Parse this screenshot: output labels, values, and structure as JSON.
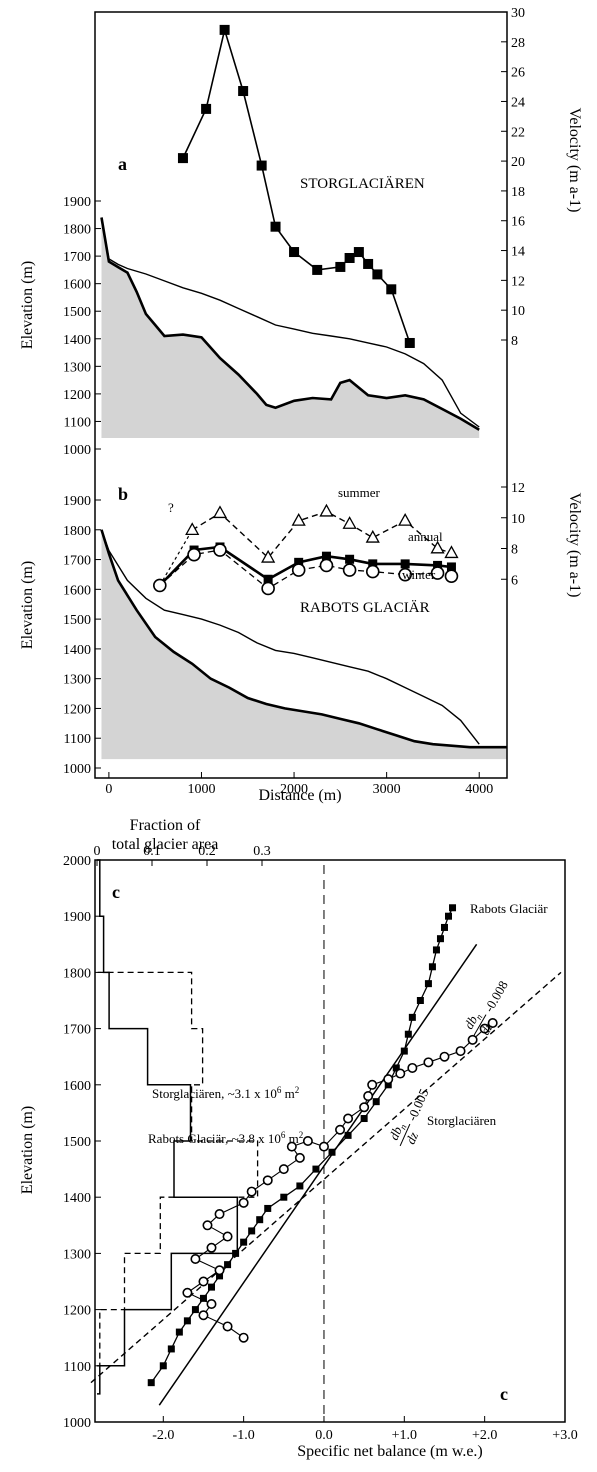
{
  "chart_data": [
    {
      "panel": "a",
      "type": "line",
      "panel_label": "a",
      "glacier_name": "STORGLACIÄREN",
      "ylabel": "Elevation (m)",
      "y2label": "Velocity (m a-1)",
      "elevation_ticks": [
        "1000",
        "1100",
        "1200",
        "1300",
        "1400",
        "1500",
        "1600",
        "1700",
        "1800",
        "1900"
      ],
      "velocity_ticks": [
        "8",
        "10",
        "12",
        "14",
        "16",
        "18",
        "20",
        "22",
        "24",
        "26",
        "28",
        "30"
      ],
      "elevation_range": [
        1000,
        1900
      ],
      "velocity_range": [
        8,
        30
      ],
      "distance_range": [
        -150,
        4300
      ],
      "surface": {
        "x": [
          -80,
          0,
          100,
          200,
          400,
          600,
          800,
          1000,
          1200,
          1400,
          1600,
          1800,
          2000,
          2200,
          2400,
          2600,
          2800,
          3000,
          3200,
          3400,
          3600,
          3800,
          4000
        ],
        "y": [
          1840,
          1690,
          1670,
          1655,
          1635,
          1610,
          1585,
          1565,
          1540,
          1510,
          1480,
          1450,
          1435,
          1420,
          1410,
          1400,
          1385,
          1370,
          1345,
          1310,
          1250,
          1130,
          1080
        ]
      },
      "bed": {
        "x": [
          -80,
          0,
          100,
          200,
          300,
          400,
          500,
          600,
          800,
          1000,
          1200,
          1400,
          1600,
          1700,
          1800,
          2000,
          2200,
          2400,
          2500,
          2600,
          2800,
          3000,
          3200,
          3400,
          3600,
          3800,
          4000
        ],
        "y": [
          1840,
          1680,
          1660,
          1640,
          1570,
          1490,
          1450,
          1410,
          1415,
          1405,
          1330,
          1270,
          1200,
          1160,
          1150,
          1175,
          1185,
          1180,
          1240,
          1250,
          1195,
          1185,
          1195,
          1180,
          1145,
          1110,
          1070
        ]
      },
      "velocity": {
        "x": [
          800,
          1050,
          1250,
          1450,
          1650,
          1800,
          2000,
          2250,
          2500,
          2600,
          2700,
          2800,
          2900,
          3050,
          3250
        ],
        "y": [
          20.2,
          23.5,
          28.8,
          24.7,
          19.7,
          15.6,
          13.9,
          12.7,
          12.9,
          13.5,
          13.9,
          13.1,
          12.4,
          11.4,
          7.8
        ]
      }
    },
    {
      "panel": "b",
      "type": "line",
      "panel_label": "b",
      "glacier_name": "RABOTS GLACIÄR",
      "ylabel": "Elevation (m)",
      "y2label": "Velocity (m a-1)",
      "xlabel": "Distance (m)",
      "elevation_ticks": [
        "1000",
        "1100",
        "1200",
        "1300",
        "1400",
        "1500",
        "1600",
        "1700",
        "1800",
        "1900"
      ],
      "velocity_ticks": [
        "6",
        "8",
        "10",
        "12"
      ],
      "distance_ticks": [
        "0",
        "1000",
        "2000",
        "3000",
        "4000"
      ],
      "elevation_range": [
        1000,
        1900
      ],
      "velocity_range": [
        4,
        12
      ],
      "distance_range": [
        -150,
        4300
      ],
      "question_mark": "?",
      "series_labels": {
        "summer": "summer",
        "annual": "annual",
        "winter": "winter"
      },
      "surface": {
        "x": [
          -80,
          0,
          200,
          400,
          600,
          800,
          1000,
          1200,
          1400,
          1600,
          1800,
          2000,
          2200,
          2400,
          2600,
          2800,
          3000,
          3200,
          3400,
          3600,
          3800,
          4000
        ],
        "y": [
          1800,
          1730,
          1630,
          1570,
          1530,
          1515,
          1500,
          1480,
          1455,
          1420,
          1395,
          1385,
          1370,
          1355,
          1340,
          1325,
          1300,
          1270,
          1240,
          1210,
          1160,
          1080
        ]
      },
      "bed": {
        "x": [
          -80,
          0,
          100,
          300,
          500,
          700,
          900,
          1100,
          1300,
          1500,
          1700,
          1900,
          2100,
          2300,
          2500,
          2700,
          2900,
          3100,
          3300,
          3500,
          3700,
          3900,
          4100,
          4300
        ],
        "y": [
          1800,
          1720,
          1630,
          1530,
          1440,
          1390,
          1350,
          1300,
          1270,
          1235,
          1215,
          1200,
          1190,
          1180,
          1165,
          1150,
          1130,
          1110,
          1090,
          1080,
          1075,
          1070,
          1070,
          1070
        ]
      },
      "summer": {
        "x": [
          900,
          1200,
          1720,
          2050,
          2350,
          2600,
          2850,
          3200,
          3550,
          3700
        ],
        "y": [
          9.2,
          10.3,
          7.4,
          9.8,
          10.4,
          9.6,
          8.7,
          9.8,
          8.0,
          7.7
        ]
      },
      "annual": {
        "x": [
          550,
          920,
          1200,
          1720,
          2050,
          2350,
          2600,
          2850,
          3200,
          3550,
          3700
        ],
        "y": [
          5.6,
          7.9,
          8.1,
          6.0,
          7.1,
          7.5,
          7.3,
          7.0,
          7.0,
          6.9,
          6.8
        ]
      },
      "winter": {
        "x": [
          550,
          920,
          1200,
          1720,
          2050,
          2350,
          2600,
          2850,
          3200,
          3550,
          3700
        ],
        "y": [
          5.6,
          7.6,
          7.9,
          5.4,
          6.6,
          6.9,
          6.6,
          6.5,
          6.3,
          6.4,
          6.2
        ]
      }
    },
    {
      "panel": "c",
      "type": "line",
      "panel_label": "c",
      "ylabel": "Elevation (m)",
      "xlabel": "Specific net balance (m w.e.)",
      "top_axis_label_1": "Fraction of",
      "top_axis_label_2": "total glacier area",
      "elevation_ticks": [
        "1000",
        "1100",
        "1200",
        "1300",
        "1400",
        "1500",
        "1600",
        "1700",
        "1800",
        "1900",
        "2000"
      ],
      "balance_ticks": [
        "-2.0",
        "-1.0",
        "0.0",
        "+1.0",
        "+2.0",
        "+3.0"
      ],
      "fraction_ticks": [
        "0",
        "0.1",
        "0.2",
        "0.3"
      ],
      "elevation_range": [
        1000,
        2000
      ],
      "balance_range": [
        -2.85,
        3.0
      ],
      "fraction_range": [
        0,
        0.3
      ],
      "rabots_label": "Rabots Glaciär",
      "storg_label": "Storglaciären",
      "storg_area_label": "Storglaciären, ~3.1 x 10",
      "storg_area_unit": " m",
      "rabots_area_label": "Rabots Glaciär, ~3.8 x 10",
      "rabots_area_unit": " m",
      "area_exp": "6",
      "area_sq": "2",
      "gradient_num": "db",
      "gradient_sub": "n",
      "gradient_den": "dz",
      "gradient_rabots": "-0.005",
      "gradient_storg": "-0.008",
      "rabots_area_hist": {
        "bins_lower": [
          1050,
          1100,
          1200,
          1300,
          1400,
          1500,
          1600,
          1700,
          1800,
          1900
        ],
        "fraction": [
          0.005,
          0.05,
          0.135,
          0.255,
          0.14,
          0.17,
          0.092,
          0.022,
          0.012,
          0.005
        ]
      },
      "storg_area_hist": {
        "bins_lower": [
          1100,
          1200,
          1300,
          1400,
          1500,
          1600,
          1700
        ],
        "fraction": [
          0.005,
          0.05,
          0.115,
          0.292,
          0.172,
          0.192,
          0.172
        ]
      },
      "rabots_balance": {
        "x": [
          -2.15,
          -2.0,
          -1.9,
          -1.8,
          -1.7,
          -1.6,
          -1.5,
          -1.4,
          -1.3,
          -1.2,
          -1.1,
          -1.0,
          -0.9,
          -0.8,
          -0.7,
          -0.5,
          -0.3,
          -0.1,
          0.1,
          0.3,
          0.5,
          0.65,
          0.8,
          0.9,
          1.0,
          1.05,
          1.1,
          1.2,
          1.3,
          1.35,
          1.4,
          1.45,
          1.5,
          1.55,
          1.6
        ],
        "y": [
          1070,
          1100,
          1130,
          1160,
          1180,
          1200,
          1220,
          1240,
          1260,
          1280,
          1300,
          1320,
          1340,
          1360,
          1380,
          1400,
          1420,
          1450,
          1480,
          1510,
          1540,
          1570,
          1600,
          1630,
          1660,
          1690,
          1720,
          1750,
          1780,
          1810,
          1840,
          1860,
          1880,
          1900,
          1915
        ]
      },
      "storg_balance": {
        "x": [
          -1.0,
          -1.2,
          -1.5,
          -1.4,
          -1.7,
          -1.5,
          -1.3,
          -1.6,
          -1.4,
          -1.2,
          -1.45,
          -1.3,
          -1.0,
          -0.9,
          -0.7,
          -0.5,
          -0.3,
          -0.4,
          -0.2,
          0.0,
          0.2,
          0.3,
          0.5,
          0.55,
          0.6,
          0.8,
          0.95,
          1.1,
          1.3,
          1.5,
          1.7,
          1.85,
          2.0,
          2.1
        ],
        "y": [
          1150,
          1170,
          1190,
          1210,
          1230,
          1250,
          1270,
          1290,
          1310,
          1330,
          1350,
          1370,
          1390,
          1410,
          1430,
          1450,
          1470,
          1490,
          1500,
          1490,
          1520,
          1540,
          1560,
          1580,
          1600,
          1610,
          1620,
          1630,
          1640,
          1650,
          1660,
          1680,
          1700,
          1710
        ]
      },
      "rabots_fit": {
        "x": [
          -2.05,
          1.9
        ],
        "y": [
          1030,
          1850
        ]
      },
      "storg_fit": {
        "x": [
          -2.9,
          2.95
        ],
        "y": [
          1070,
          1800
        ]
      }
    }
  ]
}
